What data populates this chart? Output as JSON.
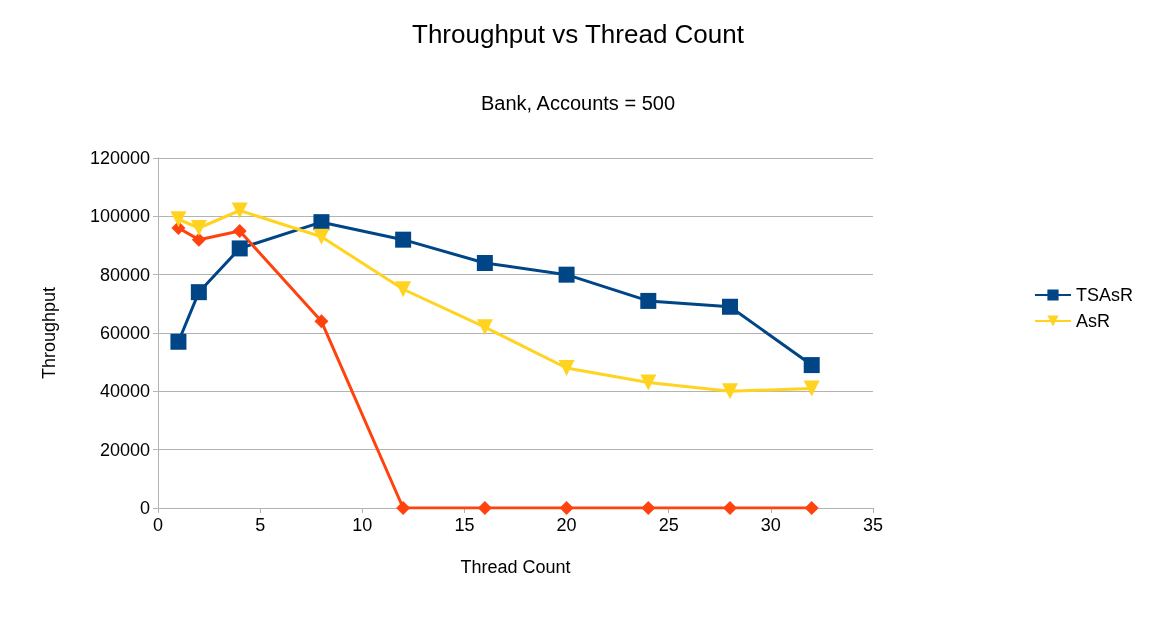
{
  "chart_data": {
    "type": "line",
    "title": "Throughput vs Thread Count",
    "subtitle": "Bank, Accounts = 500",
    "xlabel": "Thread Count",
    "ylabel": "Throughput",
    "x": [
      1,
      2,
      4,
      8,
      12,
      16,
      20,
      24,
      28,
      32
    ],
    "series": [
      {
        "name": "TSAsR",
        "color": "#004586",
        "marker": "square",
        "values": [
          57000,
          74000,
          89000,
          98000,
          92000,
          84000,
          80000,
          71000,
          69000,
          49000
        ]
      },
      {
        "color": "#ff420e",
        "marker": "diamond",
        "values": [
          96000,
          92000,
          95000,
          64000,
          0,
          0,
          0,
          0,
          0,
          0
        ]
      },
      {
        "name": "AsR",
        "color": "#ffd320",
        "marker": "triangle",
        "values": [
          99000,
          96000,
          102000,
          93000,
          75000,
          62000,
          48000,
          43000,
          40000,
          41000
        ]
      }
    ],
    "xlim": [
      0,
      35
    ],
    "xticks": [
      0,
      5,
      10,
      15,
      20,
      25,
      30,
      35
    ],
    "ylim": [
      0,
      120000
    ],
    "yticks": [
      0,
      20000,
      40000,
      60000,
      80000,
      100000,
      120000
    ],
    "grid": "y",
    "legend": "right",
    "line_style": "solid"
  }
}
